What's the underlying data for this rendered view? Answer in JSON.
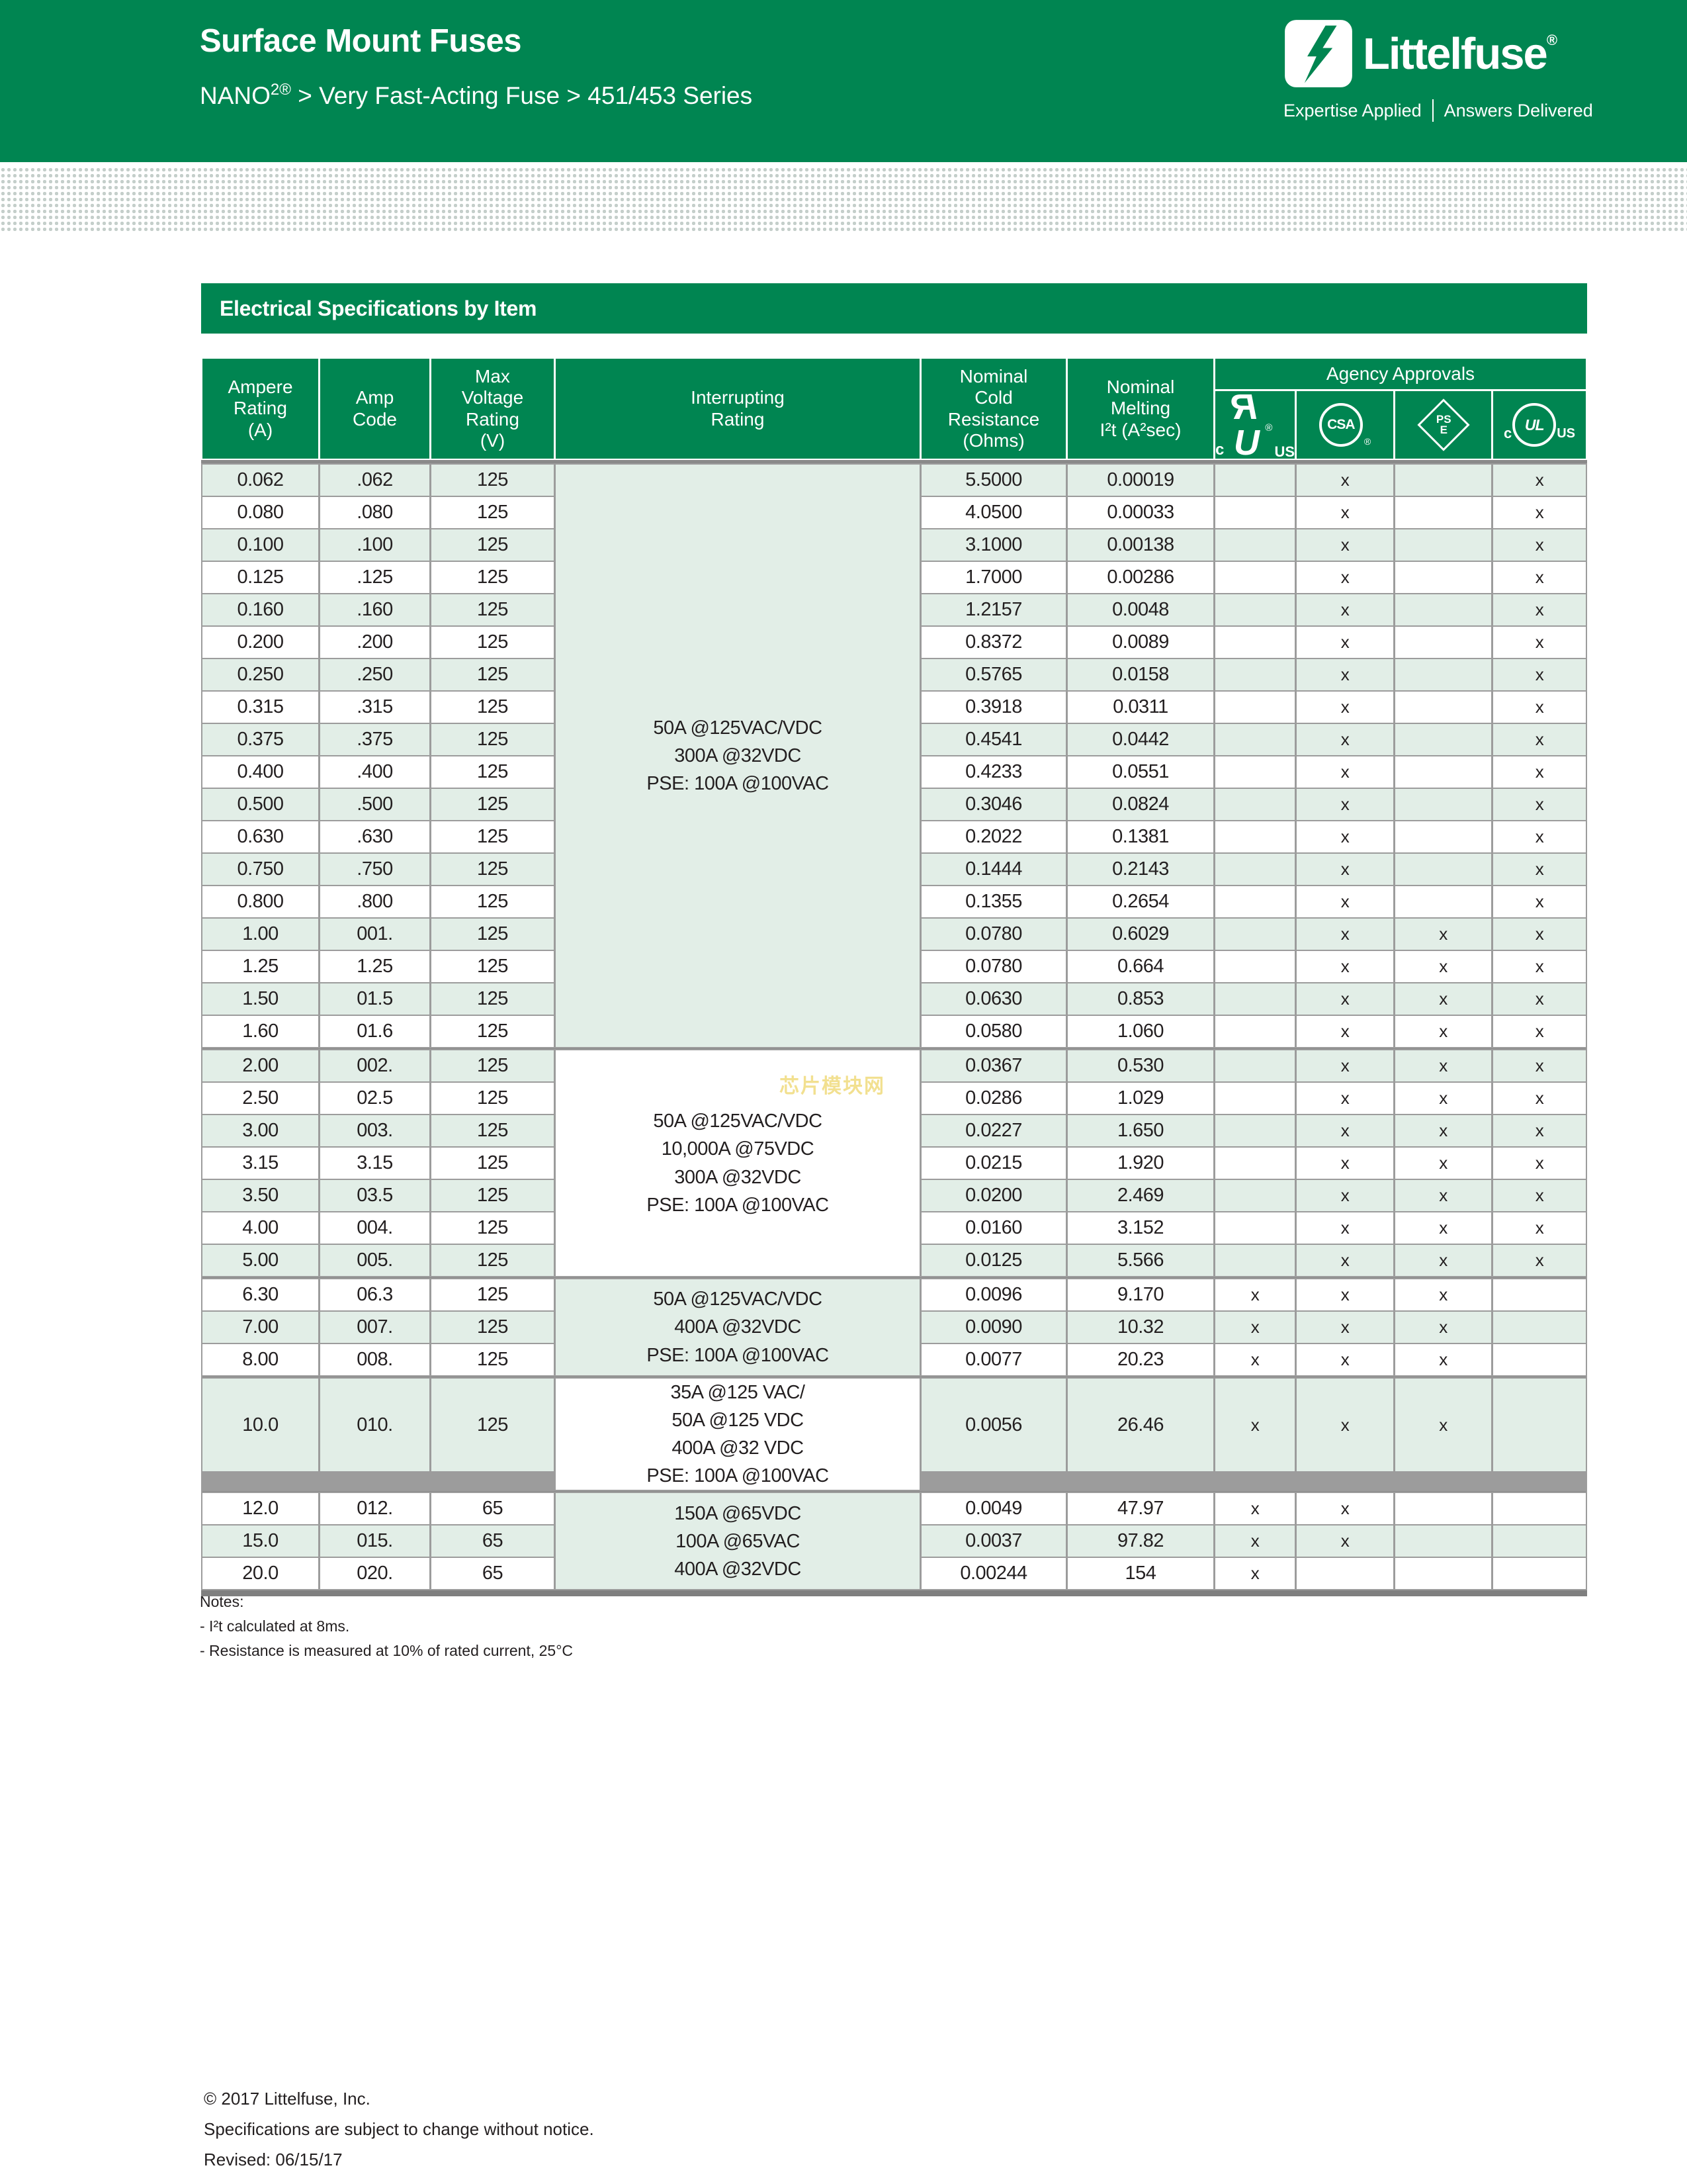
{
  "header": {
    "title": "Surface Mount Fuses",
    "subtitle_product": "NANO",
    "subtitle_sup": "2®",
    "subtitle_rest": " > Very Fast-Acting Fuse > 451/453 Series",
    "logo": {
      "brand": "Littelfuse",
      "reg": "®",
      "tagline_left": "Expertise Applied",
      "tagline_right": "Answers Delivered"
    },
    "brand_green": "#008551"
  },
  "section": {
    "title": "Electrical Specifications by Item"
  },
  "table": {
    "columns": [
      "Ampere\nRating\n(A)",
      "Amp\nCode",
      "Max\nVoltage\nRating\n(V)",
      "Interrupting\nRating",
      "Nominal\nCold\nResistance\n(Ohms)",
      "Nominal\nMelting\nI²t (A²sec)",
      "Agency Approvals"
    ],
    "agency_marks": {
      "ru": {
        "c": "c",
        "r": "R",
        "u": "U",
        "us": "US",
        "reg": "®"
      },
      "csa": {
        "text": "CSA",
        "reg": "®"
      },
      "pse": {
        "top": "PS",
        "bottom": "E"
      },
      "cul": {
        "c": "c",
        "main": "UL",
        "us": "US"
      }
    },
    "groups": [
      {
        "rows": [
          0,
          17
        ],
        "bg": "green",
        "text": "50A @125VAC/VDC\n300A @32VDC\nPSE: 100A @100VAC"
      },
      {
        "rows": [
          18,
          24
        ],
        "bg": "white",
        "text": "50A @125VAC/VDC\n10,000A @75VDC\n300A @32VDC\nPSE: 100A @100VAC"
      },
      {
        "rows": [
          25,
          27
        ],
        "bg": "green",
        "text": "50A @125VAC/VDC\n400A @32VDC\nPSE: 100A @100VAC"
      },
      {
        "rows": [
          28,
          28
        ],
        "bg": "white",
        "tall": true,
        "text": "35A @125 VAC/\n50A @125 VDC\n400A @32 VDC\nPSE: 100A @100VAC"
      },
      {
        "rows": [
          29,
          31
        ],
        "bg": "green",
        "text": "150A @65VDC\n100A @65VAC\n400A @32VDC"
      }
    ],
    "rows": [
      {
        "a": "0.062",
        "code": ".062",
        "v": "125",
        "r": "5.5000",
        "i2t": "0.00019",
        "approvals": [
          "",
          "x",
          "",
          "x"
        ]
      },
      {
        "a": "0.080",
        "code": ".080",
        "v": "125",
        "r": "4.0500",
        "i2t": "0.00033",
        "approvals": [
          "",
          "x",
          "",
          "x"
        ]
      },
      {
        "a": "0.100",
        "code": ".100",
        "v": "125",
        "r": "3.1000",
        "i2t": "0.00138",
        "approvals": [
          "",
          "x",
          "",
          "x"
        ]
      },
      {
        "a": "0.125",
        "code": ".125",
        "v": "125",
        "r": "1.7000",
        "i2t": "0.00286",
        "approvals": [
          "",
          "x",
          "",
          "x"
        ]
      },
      {
        "a": "0.160",
        "code": ".160",
        "v": "125",
        "r": "1.2157",
        "i2t": "0.0048",
        "approvals": [
          "",
          "x",
          "",
          "x"
        ]
      },
      {
        "a": "0.200",
        "code": ".200",
        "v": "125",
        "r": "0.8372",
        "i2t": "0.0089",
        "approvals": [
          "",
          "x",
          "",
          "x"
        ]
      },
      {
        "a": "0.250",
        "code": ".250",
        "v": "125",
        "r": "0.5765",
        "i2t": "0.0158",
        "approvals": [
          "",
          "x",
          "",
          "x"
        ]
      },
      {
        "a": "0.315",
        "code": ".315",
        "v": "125",
        "r": "0.3918",
        "i2t": "0.0311",
        "approvals": [
          "",
          "x",
          "",
          "x"
        ]
      },
      {
        "a": "0.375",
        "code": ".375",
        "v": "125",
        "r": "0.4541",
        "i2t": "0.0442",
        "approvals": [
          "",
          "x",
          "",
          "x"
        ]
      },
      {
        "a": "0.400",
        "code": ".400",
        "v": "125",
        "r": "0.4233",
        "i2t": "0.0551",
        "approvals": [
          "",
          "x",
          "",
          "x"
        ]
      },
      {
        "a": "0.500",
        "code": ".500",
        "v": "125",
        "r": "0.3046",
        "i2t": "0.0824",
        "approvals": [
          "",
          "x",
          "",
          "x"
        ]
      },
      {
        "a": "0.630",
        "code": ".630",
        "v": "125",
        "r": "0.2022",
        "i2t": "0.1381",
        "approvals": [
          "",
          "x",
          "",
          "x"
        ]
      },
      {
        "a": "0.750",
        "code": ".750",
        "v": "125",
        "r": "0.1444",
        "i2t": "0.2143",
        "approvals": [
          "",
          "x",
          "",
          "x"
        ]
      },
      {
        "a": "0.800",
        "code": ".800",
        "v": "125",
        "r": "0.1355",
        "i2t": "0.2654",
        "approvals": [
          "",
          "x",
          "",
          "x"
        ]
      },
      {
        "a": "1.00",
        "code": "001.",
        "v": "125",
        "r": "0.0780",
        "i2t": "0.6029",
        "approvals": [
          "",
          "x",
          "x",
          "x"
        ]
      },
      {
        "a": "1.25",
        "code": "1.25",
        "v": "125",
        "r": "0.0780",
        "i2t": "0.664",
        "approvals": [
          "",
          "x",
          "x",
          "x"
        ]
      },
      {
        "a": "1.50",
        "code": "01.5",
        "v": "125",
        "r": "0.0630",
        "i2t": "0.853",
        "approvals": [
          "",
          "x",
          "x",
          "x"
        ]
      },
      {
        "a": "1.60",
        "code": "01.6",
        "v": "125",
        "r": "0.0580",
        "i2t": "1.060",
        "approvals": [
          "",
          "x",
          "x",
          "x"
        ]
      },
      {
        "a": "2.00",
        "code": "002.",
        "v": "125",
        "r": "0.0367",
        "i2t": "0.530",
        "approvals": [
          "",
          "x",
          "x",
          "x"
        ]
      },
      {
        "a": "2.50",
        "code": "02.5",
        "v": "125",
        "r": "0.0286",
        "i2t": "1.029",
        "approvals": [
          "",
          "x",
          "x",
          "x"
        ]
      },
      {
        "a": "3.00",
        "code": "003.",
        "v": "125",
        "r": "0.0227",
        "i2t": "1.650",
        "approvals": [
          "",
          "x",
          "x",
          "x"
        ]
      },
      {
        "a": "3.15",
        "code": "3.15",
        "v": "125",
        "r": "0.0215",
        "i2t": "1.920",
        "approvals": [
          "",
          "x",
          "x",
          "x"
        ]
      },
      {
        "a": "3.50",
        "code": "03.5",
        "v": "125",
        "r": "0.0200",
        "i2t": "2.469",
        "approvals": [
          "",
          "x",
          "x",
          "x"
        ]
      },
      {
        "a": "4.00",
        "code": "004.",
        "v": "125",
        "r": "0.0160",
        "i2t": "3.152",
        "approvals": [
          "",
          "x",
          "x",
          "x"
        ]
      },
      {
        "a": "5.00",
        "code": "005.",
        "v": "125",
        "r": "0.0125",
        "i2t": "5.566",
        "approvals": [
          "",
          "x",
          "x",
          "x"
        ]
      },
      {
        "a": "6.30",
        "code": "06.3",
        "v": "125",
        "r": "0.0096",
        "i2t": "9.170",
        "approvals": [
          "x",
          "x",
          "x",
          ""
        ]
      },
      {
        "a": "7.00",
        "code": "007.",
        "v": "125",
        "r": "0.0090",
        "i2t": "10.32",
        "approvals": [
          "x",
          "x",
          "x",
          ""
        ]
      },
      {
        "a": "8.00",
        "code": "008.",
        "v": "125",
        "r": "0.0077",
        "i2t": "20.23",
        "approvals": [
          "x",
          "x",
          "x",
          ""
        ]
      },
      {
        "a": "10.0",
        "code": "010.",
        "v": "125",
        "r": "0.0056",
        "i2t": "26.46",
        "approvals": [
          "x",
          "x",
          "x",
          ""
        ]
      },
      {
        "a": "12.0",
        "code": "012.",
        "v": "65",
        "r": "0.0049",
        "i2t": "47.97",
        "approvals": [
          "x",
          "x",
          "",
          ""
        ]
      },
      {
        "a": "15.0",
        "code": "015.",
        "v": "65",
        "r": "0.0037",
        "i2t": "97.82",
        "approvals": [
          "x",
          "x",
          "",
          ""
        ]
      },
      {
        "a": "20.0",
        "code": "020.",
        "v": "65",
        "r": "0.00244",
        "i2t": "154",
        "approvals": [
          "x",
          "",
          "",
          ""
        ]
      }
    ]
  },
  "notes": {
    "heading": "Notes:",
    "lines": [
      "- I²t calculated at 8ms.",
      "- Resistance is measured at 10% of rated current, 25°C"
    ]
  },
  "watermark": "芯片模块网",
  "footer": {
    "lines": [
      "© 2017 Littelfuse, Inc.",
      "Specifications are subject to change without notice.",
      "Revised: 06/15/17"
    ]
  }
}
